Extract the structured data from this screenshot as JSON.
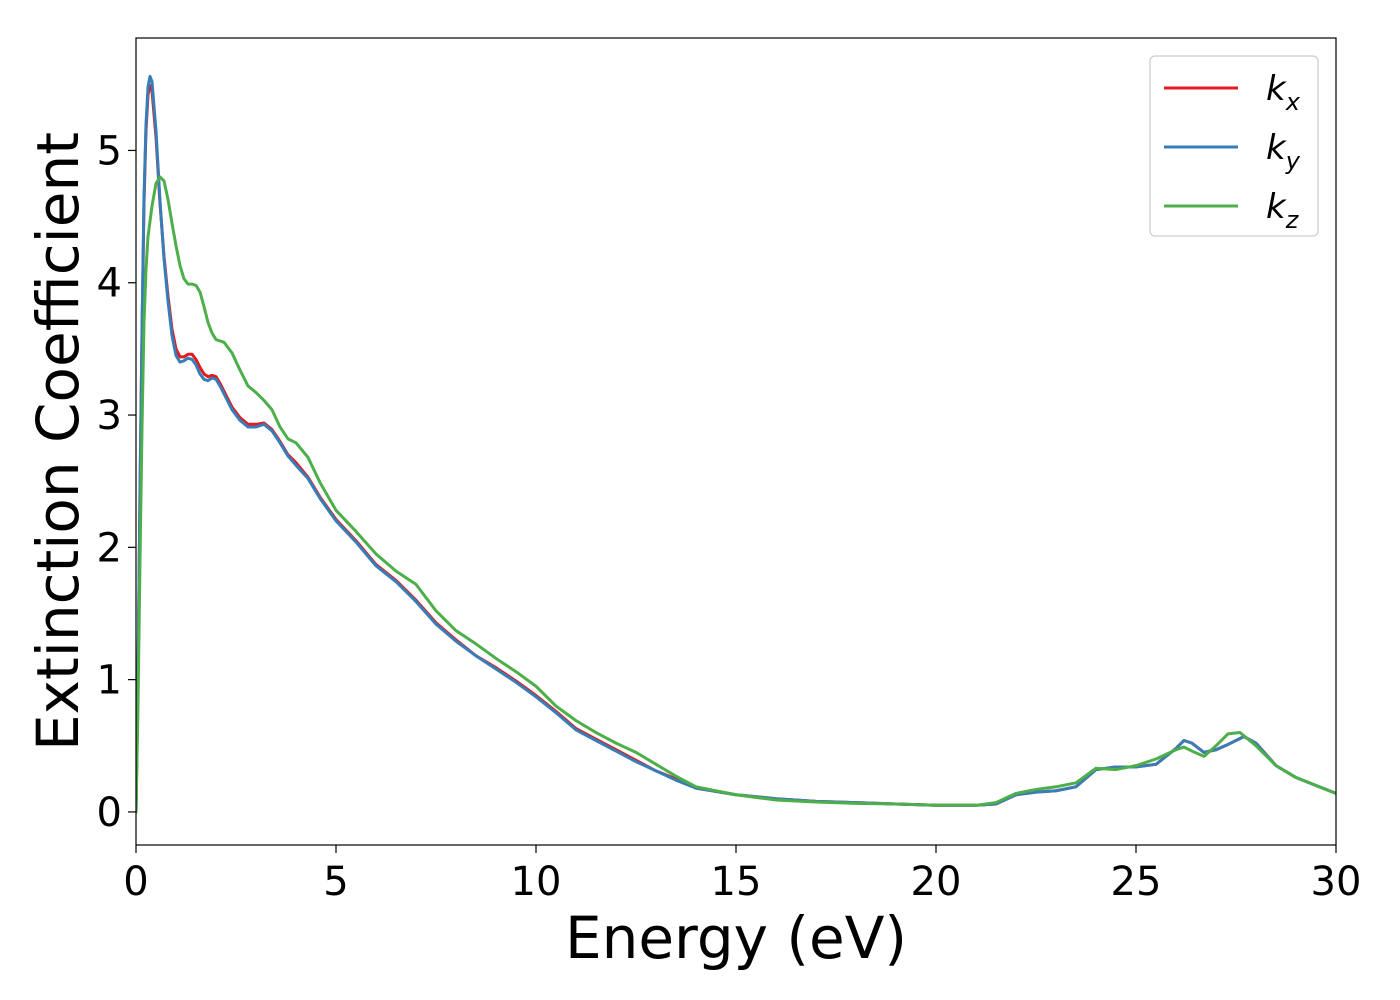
{
  "chart_data": {
    "type": "line",
    "title": "",
    "xlabel": "Energy (eV)",
    "ylabel": "Extinction Coefficient",
    "xlim": [
      0,
      30
    ],
    "ylim": [
      -0.25,
      5.85
    ],
    "xticks": [
      0,
      5,
      10,
      15,
      20,
      25,
      30
    ],
    "yticks": [
      0,
      1,
      2,
      3,
      4,
      5
    ],
    "xtick_labels": [
      "0",
      "5",
      "10",
      "15",
      "20",
      "25",
      "30"
    ],
    "ytick_labels": [
      "0",
      "1",
      "2",
      "3",
      "4",
      "5"
    ],
    "grid": false,
    "legend": {
      "position": "top-right",
      "entries": [
        {
          "base": "k",
          "sub": "x",
          "color": "#e41a1c"
        },
        {
          "base": "k",
          "sub": "y",
          "color": "#377eb8"
        },
        {
          "base": "k",
          "sub": "z",
          "color": "#4daf4a"
        }
      ]
    },
    "series": [
      {
        "name": "kx",
        "color": "#e41a1c",
        "points": [
          [
            0.0,
            0.0
          ],
          [
            0.05,
            1.0
          ],
          [
            0.1,
            2.4
          ],
          [
            0.15,
            3.6
          ],
          [
            0.2,
            4.6
          ],
          [
            0.25,
            5.15
          ],
          [
            0.3,
            5.42
          ],
          [
            0.35,
            5.49
          ],
          [
            0.4,
            5.45
          ],
          [
            0.5,
            5.1
          ],
          [
            0.6,
            4.6
          ],
          [
            0.7,
            4.2
          ],
          [
            0.8,
            3.9
          ],
          [
            0.9,
            3.65
          ],
          [
            1.0,
            3.5
          ],
          [
            1.1,
            3.44
          ],
          [
            1.2,
            3.44
          ],
          [
            1.3,
            3.46
          ],
          [
            1.4,
            3.46
          ],
          [
            1.5,
            3.42
          ],
          [
            1.6,
            3.36
          ],
          [
            1.7,
            3.31
          ],
          [
            1.8,
            3.29
          ],
          [
            1.9,
            3.3
          ],
          [
            2.0,
            3.29
          ],
          [
            2.1,
            3.24
          ],
          [
            2.2,
            3.18
          ],
          [
            2.4,
            3.06
          ],
          [
            2.6,
            2.98
          ],
          [
            2.8,
            2.93
          ],
          [
            3.0,
            2.93
          ],
          [
            3.2,
            2.94
          ],
          [
            3.4,
            2.89
          ],
          [
            3.6,
            2.8
          ],
          [
            3.8,
            2.7
          ],
          [
            4.0,
            2.64
          ],
          [
            4.3,
            2.53
          ],
          [
            4.6,
            2.38
          ],
          [
            5.0,
            2.21
          ],
          [
            5.5,
            2.05
          ],
          [
            6.0,
            1.87
          ],
          [
            6.5,
            1.75
          ],
          [
            7.0,
            1.6
          ],
          [
            7.5,
            1.43
          ],
          [
            8.0,
            1.3
          ],
          [
            8.5,
            1.18
          ],
          [
            9.0,
            1.09
          ],
          [
            9.5,
            0.99
          ],
          [
            10.0,
            0.88
          ],
          [
            10.5,
            0.76
          ],
          [
            11.0,
            0.63
          ],
          [
            11.5,
            0.55
          ],
          [
            12.0,
            0.47
          ],
          [
            12.5,
            0.39
          ],
          [
            13.0,
            0.31
          ],
          [
            13.5,
            0.25
          ],
          [
            14.0,
            0.18
          ],
          [
            15.0,
            0.13
          ],
          [
            16.0,
            0.1
          ],
          [
            17.0,
            0.08
          ],
          [
            18.0,
            0.07
          ],
          [
            19.0,
            0.06
          ],
          [
            20.0,
            0.05
          ],
          [
            21.0,
            0.05
          ],
          [
            21.5,
            0.06
          ],
          [
            22.0,
            0.13
          ],
          [
            22.5,
            0.15
          ],
          [
            23.0,
            0.16
          ],
          [
            23.5,
            0.19
          ],
          [
            24.0,
            0.32
          ],
          [
            24.5,
            0.34
          ],
          [
            25.0,
            0.34
          ],
          [
            25.5,
            0.36
          ],
          [
            26.0,
            0.48
          ],
          [
            26.2,
            0.54
          ],
          [
            26.4,
            0.52
          ],
          [
            26.7,
            0.45
          ],
          [
            27.0,
            0.47
          ],
          [
            27.3,
            0.51
          ],
          [
            27.7,
            0.57
          ],
          [
            28.0,
            0.52
          ],
          [
            28.5,
            0.35
          ],
          [
            29.0,
            0.26
          ],
          [
            29.5,
            0.2
          ],
          [
            30.0,
            0.14
          ]
        ]
      },
      {
        "name": "ky",
        "color": "#377eb8",
        "points": [
          [
            0.0,
            0.0
          ],
          [
            0.05,
            1.0
          ],
          [
            0.1,
            2.45
          ],
          [
            0.15,
            3.65
          ],
          [
            0.2,
            4.65
          ],
          [
            0.25,
            5.2
          ],
          [
            0.3,
            5.48
          ],
          [
            0.35,
            5.56
          ],
          [
            0.4,
            5.52
          ],
          [
            0.5,
            5.15
          ],
          [
            0.6,
            4.62
          ],
          [
            0.7,
            4.18
          ],
          [
            0.8,
            3.86
          ],
          [
            0.9,
            3.6
          ],
          [
            1.0,
            3.45
          ],
          [
            1.1,
            3.4
          ],
          [
            1.2,
            3.41
          ],
          [
            1.3,
            3.43
          ],
          [
            1.4,
            3.42
          ],
          [
            1.5,
            3.38
          ],
          [
            1.6,
            3.31
          ],
          [
            1.7,
            3.27
          ],
          [
            1.8,
            3.26
          ],
          [
            1.9,
            3.28
          ],
          [
            2.0,
            3.27
          ],
          [
            2.1,
            3.22
          ],
          [
            2.2,
            3.16
          ],
          [
            2.4,
            3.04
          ],
          [
            2.6,
            2.96
          ],
          [
            2.8,
            2.91
          ],
          [
            3.0,
            2.91
          ],
          [
            3.2,
            2.93
          ],
          [
            3.4,
            2.88
          ],
          [
            3.6,
            2.79
          ],
          [
            3.8,
            2.69
          ],
          [
            4.0,
            2.62
          ],
          [
            4.3,
            2.52
          ],
          [
            4.6,
            2.37
          ],
          [
            5.0,
            2.2
          ],
          [
            5.5,
            2.04
          ],
          [
            6.0,
            1.86
          ],
          [
            6.5,
            1.74
          ],
          [
            7.0,
            1.59
          ],
          [
            7.5,
            1.42
          ],
          [
            8.0,
            1.29
          ],
          [
            8.5,
            1.18
          ],
          [
            9.0,
            1.08
          ],
          [
            9.5,
            0.98
          ],
          [
            10.0,
            0.87
          ],
          [
            10.5,
            0.75
          ],
          [
            11.0,
            0.62
          ],
          [
            11.5,
            0.54
          ],
          [
            12.0,
            0.46
          ],
          [
            12.5,
            0.38
          ],
          [
            13.0,
            0.31
          ],
          [
            13.5,
            0.24
          ],
          [
            14.0,
            0.18
          ],
          [
            15.0,
            0.13
          ],
          [
            16.0,
            0.1
          ],
          [
            17.0,
            0.08
          ],
          [
            18.0,
            0.07
          ],
          [
            19.0,
            0.06
          ],
          [
            20.0,
            0.05
          ],
          [
            21.0,
            0.05
          ],
          [
            21.5,
            0.06
          ],
          [
            22.0,
            0.13
          ],
          [
            22.5,
            0.15
          ],
          [
            23.0,
            0.16
          ],
          [
            23.5,
            0.19
          ],
          [
            24.0,
            0.32
          ],
          [
            24.5,
            0.34
          ],
          [
            25.0,
            0.34
          ],
          [
            25.5,
            0.36
          ],
          [
            26.0,
            0.48
          ],
          [
            26.2,
            0.54
          ],
          [
            26.4,
            0.52
          ],
          [
            26.7,
            0.45
          ],
          [
            27.0,
            0.47
          ],
          [
            27.3,
            0.51
          ],
          [
            27.7,
            0.57
          ],
          [
            28.0,
            0.52
          ],
          [
            28.5,
            0.35
          ],
          [
            29.0,
            0.26
          ],
          [
            29.5,
            0.2
          ],
          [
            30.0,
            0.14
          ]
        ]
      },
      {
        "name": "kz",
        "color": "#4daf4a",
        "points": [
          [
            0.0,
            0.0
          ],
          [
            0.05,
            0.8
          ],
          [
            0.1,
            1.9
          ],
          [
            0.15,
            2.9
          ],
          [
            0.2,
            3.7
          ],
          [
            0.25,
            4.1
          ],
          [
            0.3,
            4.35
          ],
          [
            0.4,
            4.58
          ],
          [
            0.5,
            4.75
          ],
          [
            0.6,
            4.8
          ],
          [
            0.7,
            4.77
          ],
          [
            0.8,
            4.63
          ],
          [
            0.9,
            4.45
          ],
          [
            1.0,
            4.28
          ],
          [
            1.1,
            4.13
          ],
          [
            1.2,
            4.03
          ],
          [
            1.3,
            3.99
          ],
          [
            1.4,
            3.99
          ],
          [
            1.5,
            3.98
          ],
          [
            1.6,
            3.93
          ],
          [
            1.7,
            3.82
          ],
          [
            1.8,
            3.7
          ],
          [
            1.9,
            3.62
          ],
          [
            2.0,
            3.57
          ],
          [
            2.2,
            3.55
          ],
          [
            2.4,
            3.47
          ],
          [
            2.6,
            3.34
          ],
          [
            2.8,
            3.22
          ],
          [
            3.0,
            3.17
          ],
          [
            3.2,
            3.11
          ],
          [
            3.4,
            3.04
          ],
          [
            3.6,
            2.91
          ],
          [
            3.8,
            2.82
          ],
          [
            4.0,
            2.79
          ],
          [
            4.3,
            2.68
          ],
          [
            4.6,
            2.49
          ],
          [
            5.0,
            2.28
          ],
          [
            5.5,
            2.12
          ],
          [
            6.0,
            1.95
          ],
          [
            6.5,
            1.82
          ],
          [
            7.0,
            1.72
          ],
          [
            7.5,
            1.52
          ],
          [
            8.0,
            1.37
          ],
          [
            8.5,
            1.27
          ],
          [
            9.0,
            1.16
          ],
          [
            9.5,
            1.06
          ],
          [
            10.0,
            0.95
          ],
          [
            10.5,
            0.8
          ],
          [
            11.0,
            0.69
          ],
          [
            11.5,
            0.6
          ],
          [
            12.0,
            0.52
          ],
          [
            12.5,
            0.45
          ],
          [
            13.0,
            0.36
          ],
          [
            13.5,
            0.27
          ],
          [
            14.0,
            0.19
          ],
          [
            15.0,
            0.13
          ],
          [
            16.0,
            0.09
          ],
          [
            17.0,
            0.075
          ],
          [
            18.0,
            0.065
          ],
          [
            19.0,
            0.06
          ],
          [
            20.0,
            0.05
          ],
          [
            21.0,
            0.05
          ],
          [
            21.5,
            0.07
          ],
          [
            22.0,
            0.14
          ],
          [
            22.5,
            0.17
          ],
          [
            23.0,
            0.19
          ],
          [
            23.5,
            0.22
          ],
          [
            24.0,
            0.33
          ],
          [
            24.5,
            0.32
          ],
          [
            25.0,
            0.35
          ],
          [
            25.5,
            0.4
          ],
          [
            26.0,
            0.47
          ],
          [
            26.2,
            0.49
          ],
          [
            26.4,
            0.46
          ],
          [
            26.7,
            0.42
          ],
          [
            27.0,
            0.5
          ],
          [
            27.3,
            0.59
          ],
          [
            27.6,
            0.6
          ],
          [
            28.0,
            0.5
          ],
          [
            28.5,
            0.35
          ],
          [
            29.0,
            0.26
          ],
          [
            29.5,
            0.2
          ],
          [
            30.0,
            0.14
          ]
        ]
      }
    ]
  }
}
